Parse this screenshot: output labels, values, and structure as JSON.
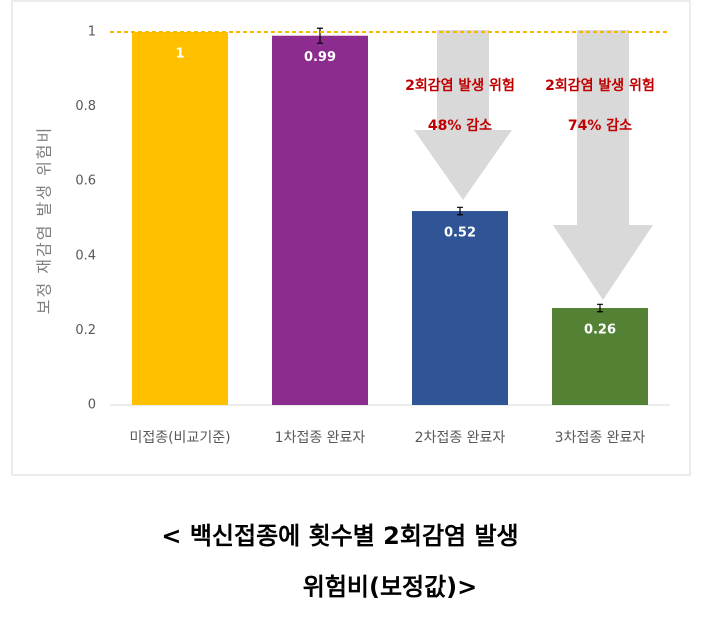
{
  "chart_data": {
    "type": "bar",
    "y_label": "보정 재감염 발생 위험비",
    "categories": [
      "미접종(비교기준)",
      "1차접종 완료자",
      "2차접종 완료자",
      "3차접종 완료자"
    ],
    "values": [
      1,
      0.99,
      0.52,
      0.26
    ],
    "errors": [
      null,
      0.02,
      0.01,
      0.01
    ],
    "colors": [
      "#FFC000",
      "#8B2C8E",
      "#2F5597",
      "#548235"
    ],
    "ylim": [
      0,
      1
    ],
    "yticks": [
      0,
      0.2,
      0.4,
      0.6,
      0.8,
      1
    ],
    "reference_line": {
      "value": 1,
      "color": "#F5B800"
    },
    "annotations": [
      [
        "2회감염 발생 위험",
        "48% 감소"
      ],
      [
        "2회감염 발생 위험",
        "74% 감소"
      ]
    ],
    "caption": [
      "< 백신접종에 횟수별 2회감염 발생",
      "위험비(보정값)>"
    ]
  }
}
